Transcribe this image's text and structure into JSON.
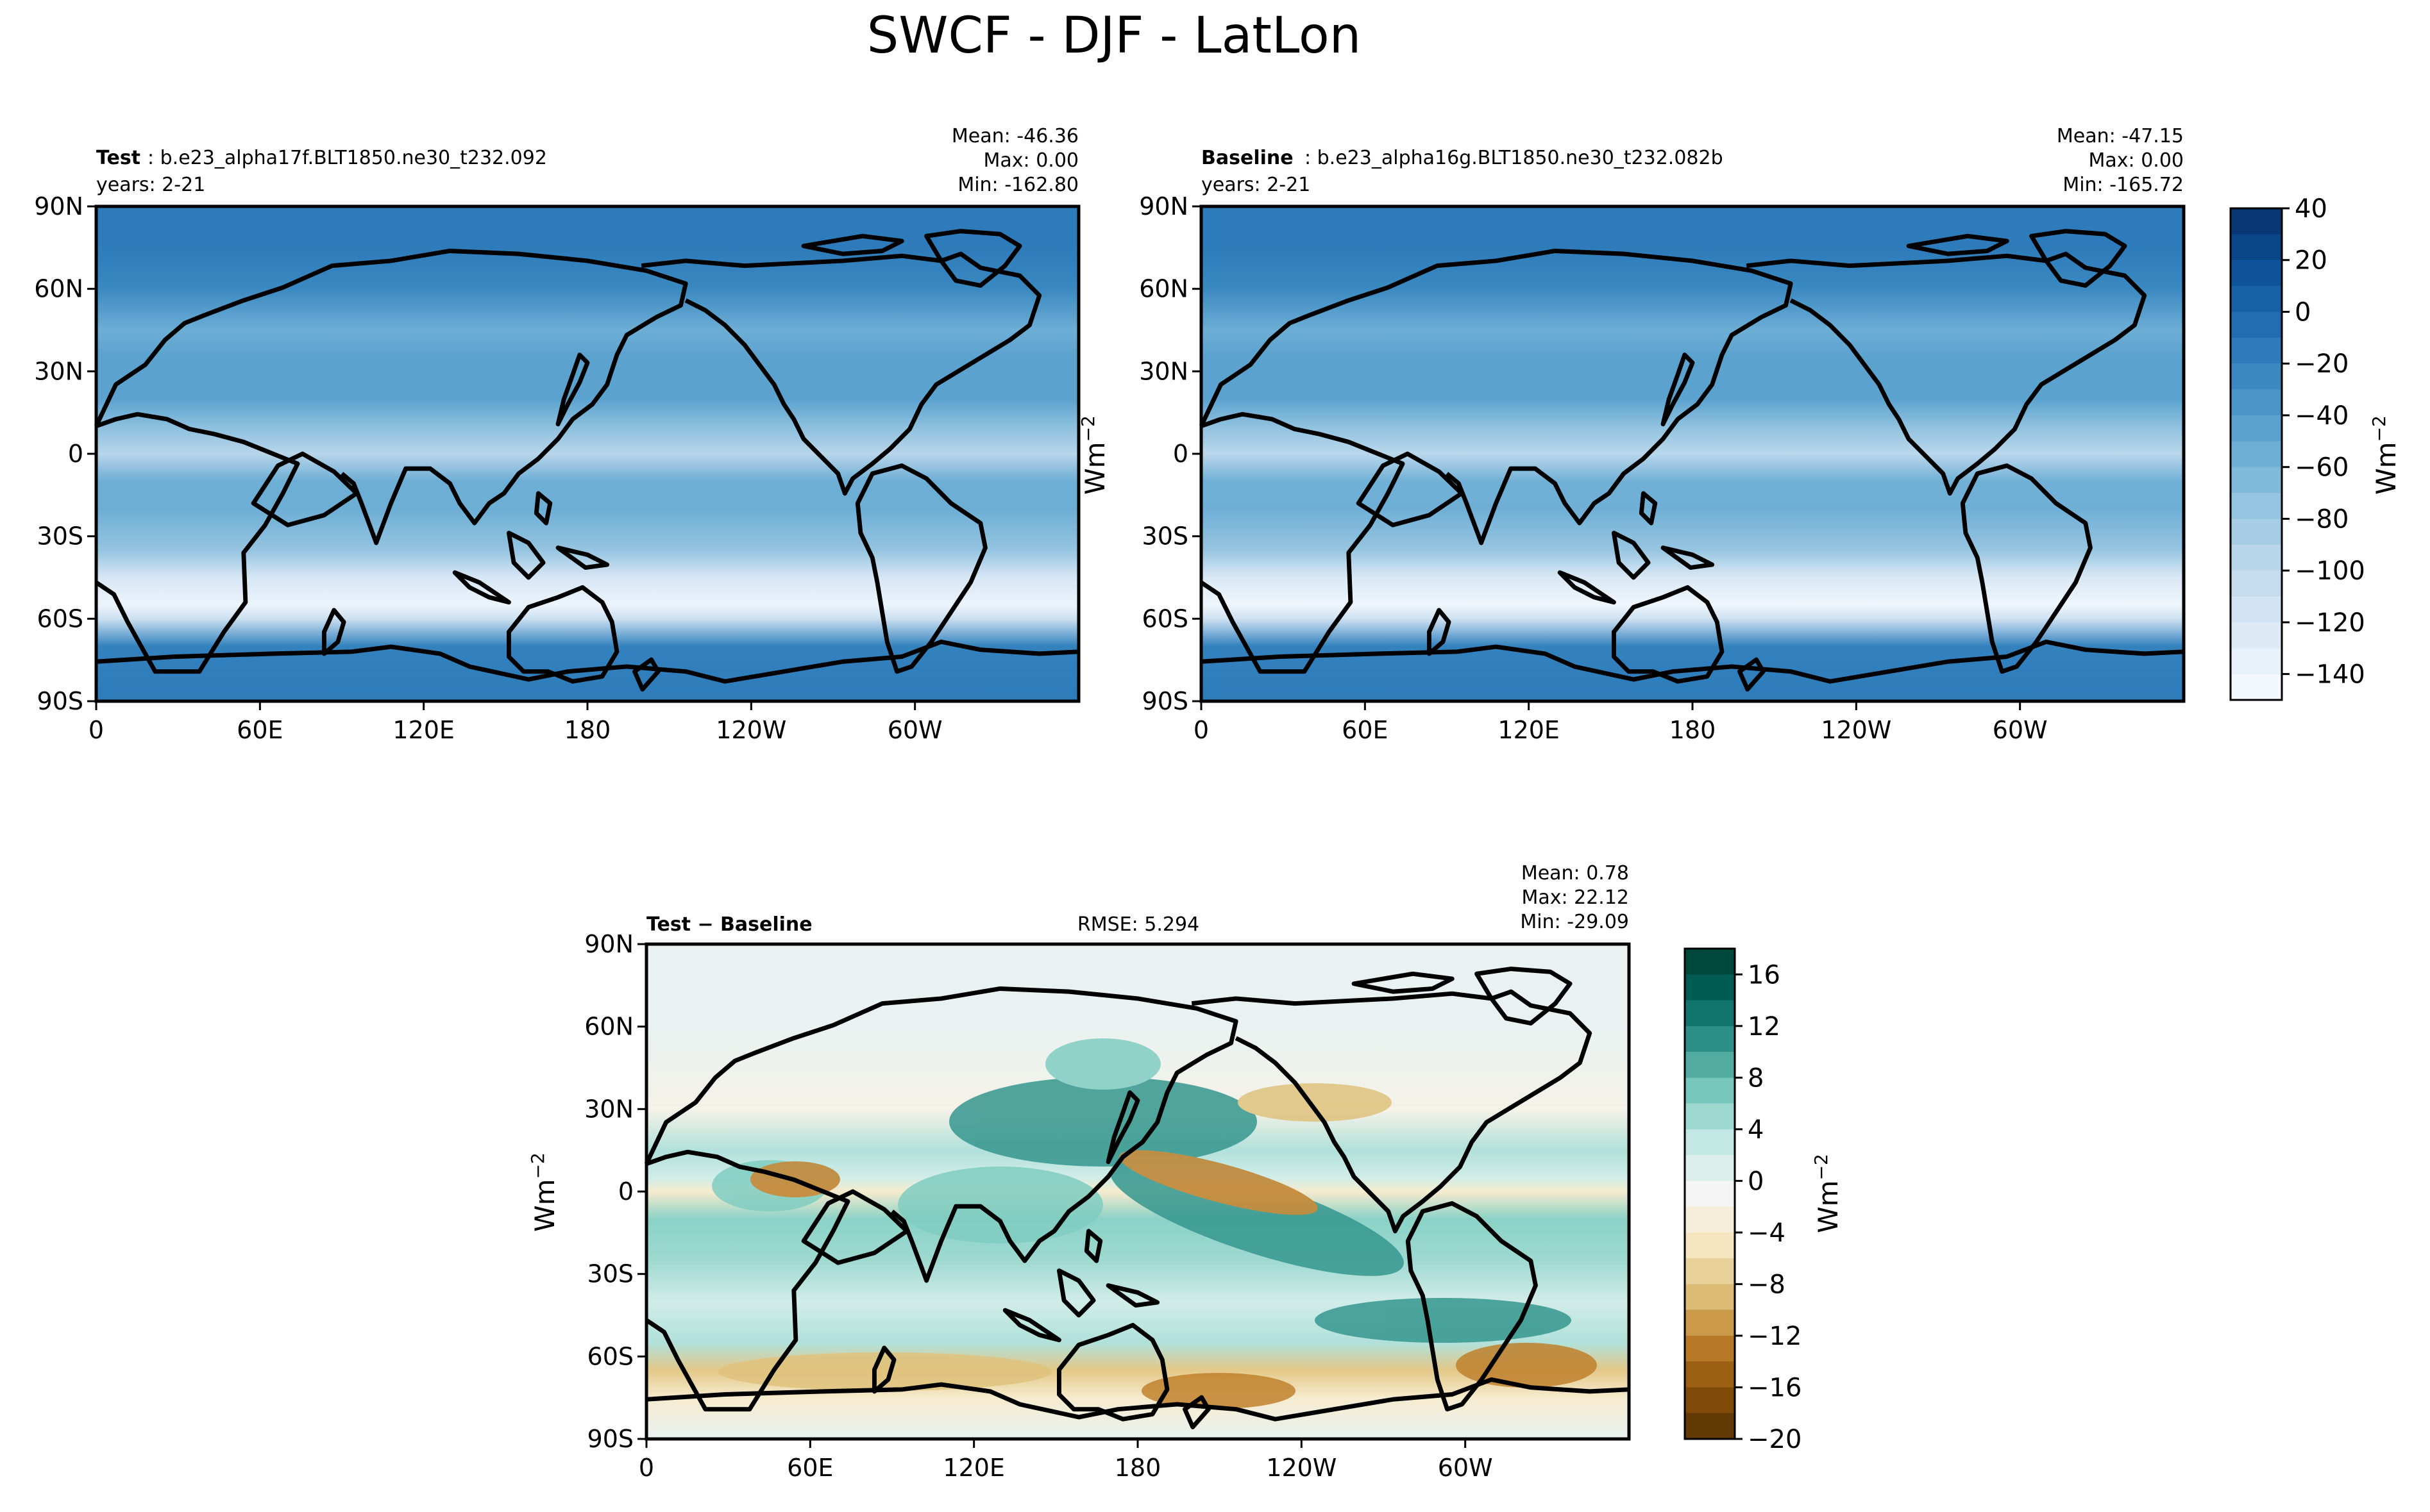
{
  "figure": {
    "title": "SWCF - DJF - LatLon"
  },
  "chart_data": [
    {
      "type": "heatmap",
      "panel": "test",
      "header": {
        "label": "Test",
        "case": ": b.e23_alpha17f.BLT1850.ne30_t232.092",
        "years": "years: 2-21",
        "stats": [
          "Mean: -46.36",
          "Max:  0.00",
          "Min: -162.80"
        ]
      },
      "x_ticks": [
        "0",
        "60E",
        "120E",
        "180",
        "120W",
        "60W"
      ],
      "y_ticks": [
        "90N",
        "60N",
        "30N",
        "0",
        "30S",
        "60S",
        "90S"
      ],
      "xlim": [
        0,
        360
      ],
      "ylim": [
        -90,
        90
      ],
      "colormap": "Blues",
      "zonal_mean": [
        [
          90,
          -15
        ],
        [
          75,
          -15
        ],
        [
          60,
          -25
        ],
        [
          45,
          -55
        ],
        [
          35,
          -45
        ],
        [
          20,
          -45
        ],
        [
          10,
          -70
        ],
        [
          0,
          -95
        ],
        [
          -10,
          -55
        ],
        [
          -20,
          -55
        ],
        [
          -35,
          -75
        ],
        [
          -45,
          -120
        ],
        [
          -55,
          -140
        ],
        [
          -60,
          -110
        ],
        [
          -70,
          -20
        ],
        [
          -90,
          -15
        ]
      ]
    },
    {
      "type": "heatmap",
      "panel": "baseline",
      "header": {
        "label": "Baseline",
        "case": ": b.e23_alpha16g.BLT1850.ne30_t232.082b",
        "years": "years: 2-21",
        "stats": [
          "Mean: -47.15",
          "Max:  0.00",
          "Min: -165.72"
        ]
      },
      "x_ticks": [
        "0",
        "60E",
        "120E",
        "180",
        "120W",
        "60W"
      ],
      "y_ticks": [
        "90N",
        "60N",
        "30N",
        "0",
        "30S",
        "60S",
        "90S"
      ],
      "xlim": [
        0,
        360
      ],
      "ylim": [
        -90,
        90
      ],
      "colormap": "Blues",
      "zonal_mean": [
        [
          90,
          -15
        ],
        [
          75,
          -15
        ],
        [
          60,
          -25
        ],
        [
          45,
          -55
        ],
        [
          35,
          -45
        ],
        [
          20,
          -45
        ],
        [
          10,
          -72
        ],
        [
          0,
          -97
        ],
        [
          -10,
          -57
        ],
        [
          -20,
          -56
        ],
        [
          -35,
          -76
        ],
        [
          -45,
          -122
        ],
        [
          -55,
          -142
        ],
        [
          -60,
          -112
        ],
        [
          -70,
          -20
        ],
        [
          -90,
          -15
        ]
      ]
    },
    {
      "type": "heatmap",
      "panel": "diff",
      "header": {
        "label": "Test − Baseline",
        "rmse": "RMSE: 5.294",
        "stats": [
          "Mean:  0.78",
          "Max: 22.12",
          "Min: -29.09"
        ]
      },
      "x_ticks": [
        "0",
        "60E",
        "120E",
        "180",
        "120W",
        "60W"
      ],
      "y_ticks": [
        "90N",
        "60N",
        "30N",
        "0",
        "30S",
        "60S",
        "90S"
      ],
      "xlim": [
        0,
        360
      ],
      "ylim": [
        -90,
        90
      ],
      "colormap": "BrBG",
      "zonal_mean": [
        [
          90,
          0
        ],
        [
          60,
          0
        ],
        [
          30,
          -2
        ],
        [
          15,
          4
        ],
        [
          5,
          2
        ],
        [
          0,
          -4
        ],
        [
          -10,
          6
        ],
        [
          -25,
          5
        ],
        [
          -40,
          2
        ],
        [
          -55,
          4
        ],
        [
          -65,
          -8
        ],
        [
          -75,
          -4
        ],
        [
          -90,
          0
        ]
      ]
    }
  ],
  "colorbars": {
    "main": {
      "ticks": [
        "40",
        "20",
        "0",
        "−20",
        "−40",
        "−60",
        "−80",
        "−100",
        "−120",
        "−140"
      ],
      "unit": "Wm",
      "unit_exp": "−2",
      "range": [
        -150,
        40
      ],
      "levels": 19,
      "colors": [
        "#f7fbff",
        "#e3eef8",
        "#cfe1f2",
        "#b5d4e9",
        "#93c3df",
        "#6daed5",
        "#4b97c9",
        "#2f7ebc",
        "#1864aa",
        "#0a4a90",
        "#08306b"
      ]
    },
    "diff": {
      "ticks": [
        "16",
        "12",
        "8",
        "4",
        "0",
        "−4",
        "−8",
        "−12",
        "−16",
        "−20"
      ],
      "unit": "Wm",
      "unit_exp": "−2",
      "range": [
        -20,
        18
      ],
      "levels": 19,
      "colors": [
        "#543005",
        "#8c510a",
        "#bf812d",
        "#dfc27d",
        "#f6e8c3",
        "#f5f5f5",
        "#c7eae5",
        "#80cdc1",
        "#35978f",
        "#01665e",
        "#003c30"
      ]
    }
  }
}
